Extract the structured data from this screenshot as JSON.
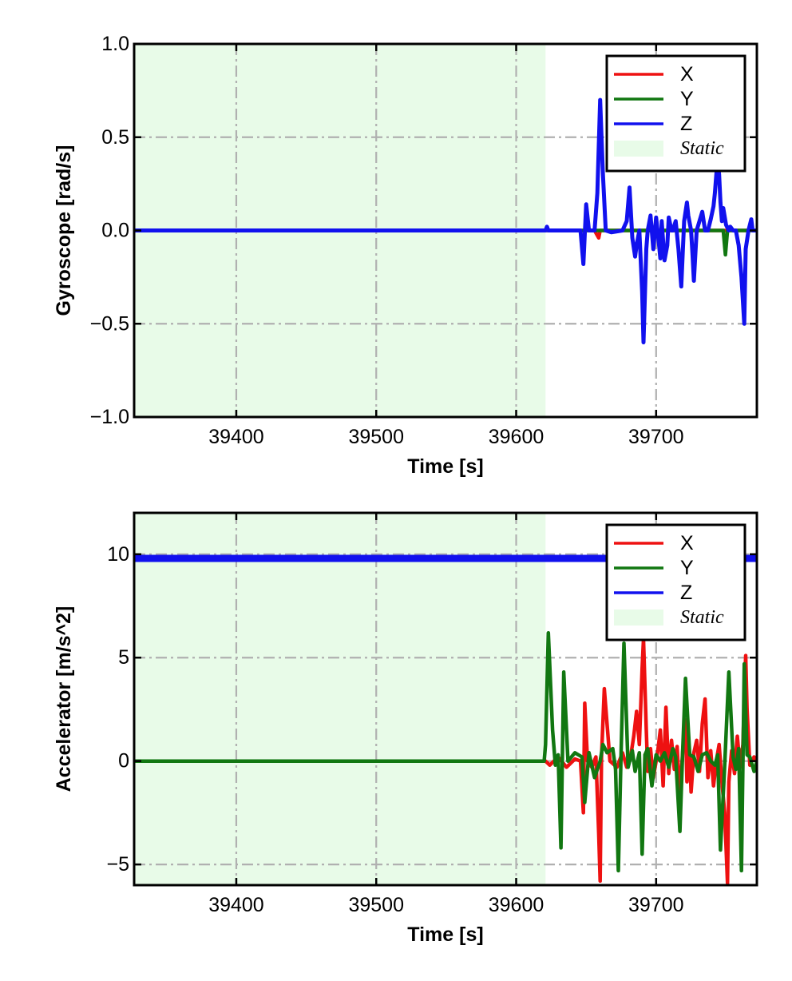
{
  "chart_data": [
    {
      "type": "line",
      "xlabel": "Time [s]",
      "ylabel": "Gyroscope [rad/s]",
      "xlim": [
        39327,
        39772
      ],
      "ylim": [
        -1.0,
        1.0
      ],
      "xticks": [
        39400,
        39500,
        39600,
        39700
      ],
      "xtick_labels": [
        "39400",
        "39500",
        "39600",
        "39700"
      ],
      "yticks": [
        -1.0,
        -0.5,
        0.0,
        0.5,
        1.0
      ],
      "ytick_labels": [
        "−1.0",
        "−0.5",
        "0.0",
        "0.5",
        "1.0"
      ],
      "grid": true,
      "legend_position": "top-right",
      "static_region": {
        "label": "Static",
        "x": [
          39327,
          39621
        ],
        "color": "#e8fbe8"
      },
      "series": [
        {
          "name": "X",
          "color": "#ee1111",
          "x": [
            39327,
            39656,
            39659,
            39660,
            39661,
            39664,
            39700,
            39772
          ],
          "y": [
            0.0,
            0.0,
            -0.04,
            0.0,
            0.0,
            0.0,
            0.0,
            0.0
          ]
        },
        {
          "name": "Y",
          "color": "#117711",
          "x": [
            39327,
            39748,
            39749.5,
            39751,
            39772
          ],
          "y": [
            0.0,
            0.0,
            -0.13,
            0.0,
            0.0
          ]
        },
        {
          "name": "Z",
          "color": "#1111ee",
          "x": [
            39327,
            39621,
            39622,
            39623,
            39646,
            39648,
            39650,
            39652,
            39656,
            39658,
            39660,
            39662,
            39664,
            39668,
            39676,
            39679,
            39681,
            39683,
            39685,
            39686,
            39688,
            39690,
            39691,
            39693,
            39694,
            39696,
            39698,
            39700,
            39702,
            39703,
            39704,
            39706,
            39708,
            39709,
            39711,
            39712,
            39714,
            39716,
            39718,
            39720,
            39722,
            39723,
            39725,
            39726,
            39727,
            39729,
            39731,
            39733,
            39735,
            39737,
            39739,
            39741,
            39742,
            39743,
            39744,
            39745,
            39746,
            39747,
            39748,
            39750,
            39752,
            39753,
            39755,
            39757,
            39759,
            39761,
            39763,
            39764,
            39766,
            39768,
            39769,
            39771,
            39772
          ],
          "y": [
            0.0,
            0.0,
            0.02,
            0.0,
            0.0,
            -0.18,
            0.14,
            0.0,
            0.0,
            0.2,
            0.7,
            0.3,
            0.0,
            -0.01,
            0.0,
            0.05,
            0.23,
            -0.04,
            -0.14,
            -0.08,
            0.0,
            -0.33,
            -0.6,
            -0.1,
            0.0,
            0.08,
            -0.1,
            0.07,
            -0.07,
            -0.15,
            0.05,
            -0.16,
            -0.08,
            0.07,
            0.0,
            0.0,
            0.05,
            -0.1,
            -0.3,
            0.05,
            0.15,
            0.08,
            0.0,
            -0.13,
            -0.27,
            0.0,
            0.05,
            0.1,
            0.0,
            0.0,
            0.06,
            0.13,
            0.2,
            0.3,
            0.38,
            0.3,
            0.15,
            0.05,
            0.12,
            0.03,
            0.0,
            0.02,
            0.0,
            0.0,
            -0.08,
            -0.25,
            -0.5,
            -0.1,
            0.0,
            0.06,
            0.0,
            0.0,
            0.0
          ]
        }
      ]
    },
    {
      "type": "line",
      "xlabel": "Time [s]",
      "ylabel": "Accelerator [m/s^2]",
      "xlim": [
        39327,
        39772
      ],
      "ylim": [
        -6.0,
        12.0
      ],
      "xticks": [
        39400,
        39500,
        39600,
        39700
      ],
      "xtick_labels": [
        "39400",
        "39500",
        "39600",
        "39700"
      ],
      "yticks": [
        -5,
        0,
        5,
        10
      ],
      "ytick_labels": [
        "−5",
        "0",
        "5",
        "10"
      ],
      "grid": true,
      "legend_position": "top-right",
      "static_region": {
        "label": "Static",
        "x": [
          39327,
          39621
        ],
        "color": "#e8fbe8"
      },
      "series": [
        {
          "name": "X",
          "color": "#ee1111",
          "x": [
            39327,
            39621,
            39624,
            39630,
            39636,
            39642,
            39646,
            39648,
            39649,
            39651,
            39654,
            39657,
            39659,
            39660,
            39661,
            39663,
            39667,
            39672,
            39676,
            39679,
            39682,
            39684,
            39686,
            39688,
            39690,
            39691,
            39693,
            39694,
            39696,
            39698,
            39701,
            39703,
            39705,
            39707,
            39709,
            39711,
            39713,
            39715,
            39717,
            39719,
            39721,
            39722,
            39724,
            39725,
            39727,
            39729,
            39731,
            39733,
            39735,
            39737,
            39739,
            39741,
            39743,
            39745,
            39747,
            39749,
            39751,
            39752,
            39754,
            39756,
            39758,
            39760,
            39762,
            39764,
            39765,
            39767,
            39770,
            39772
          ],
          "y": [
            0.0,
            0.0,
            -0.2,
            0.2,
            -0.3,
            0.1,
            0.0,
            -2.5,
            2.8,
            0.0,
            -0.3,
            0.2,
            -3.5,
            -5.8,
            0.2,
            3.5,
            0.0,
            -0.3,
            0.4,
            -0.3,
            0.3,
            1.2,
            2.4,
            0.8,
            4.5,
            5.9,
            1.5,
            -0.5,
            0.6,
            -0.8,
            0.4,
            1.5,
            -1.2,
            2.6,
            -0.6,
            1.0,
            -0.4,
            0.7,
            -1.8,
            0.5,
            2.0,
            -1.0,
            0.3,
            -1.5,
            0.4,
            1.0,
            -0.5,
            1.8,
            3.0,
            -0.8,
            0.5,
            -1.2,
            0.0,
            0.8,
            -1.0,
            -2.5,
            -5.9,
            -1.0,
            0.5,
            -0.6,
            1.2,
            -0.3,
            0.8,
            5.1,
            2.5,
            -0.2,
            0.2,
            0.0
          ]
        },
        {
          "name": "Y",
          "color": "#117711",
          "x": [
            39327,
            39620,
            39621,
            39623,
            39626,
            39628,
            39630,
            39632,
            39634,
            39637,
            39642,
            39647,
            39649,
            39652,
            39656,
            39660,
            39662,
            39665,
            39669,
            39671,
            39673,
            39675,
            39677,
            39680,
            39683,
            39685,
            39688,
            39690,
            39692,
            39694,
            39697,
            39700,
            39703,
            39706,
            39709,
            39712,
            39714,
            39717,
            39719,
            39721,
            39724,
            39727,
            39730,
            39733,
            39736,
            39739,
            39742,
            39744,
            39746,
            39749,
            39752,
            39755,
            39757,
            39759,
            39761,
            39763,
            39765,
            39767,
            39770,
            39772
          ],
          "y": [
            0.0,
            0.0,
            0.8,
            6.2,
            1.5,
            -0.2,
            0.3,
            -4.2,
            4.3,
            0.0,
            0.4,
            0.2,
            -2.0,
            0.4,
            -0.8,
            0.0,
            0.8,
            0.4,
            0.6,
            -0.4,
            -5.3,
            0.5,
            5.7,
            -0.3,
            0.5,
            -0.5,
            0.4,
            -4.5,
            0.3,
            0.6,
            -1.2,
            0.3,
            0.0,
            0.4,
            -0.3,
            0.6,
            0.2,
            -3.4,
            0.5,
            4.0,
            0.3,
            0.2,
            -0.5,
            0.3,
            0.4,
            0.0,
            -0.2,
            0.3,
            -4.3,
            -0.2,
            4.3,
            0.2,
            -0.4,
            0.6,
            -5.3,
            4.7,
            0.3,
            0.2,
            -0.5,
            0.0
          ]
        },
        {
          "name": "Z",
          "color": "#1111ee",
          "x": [
            39327,
            39772
          ],
          "y": [
            9.8,
            9.8
          ]
        }
      ]
    }
  ]
}
